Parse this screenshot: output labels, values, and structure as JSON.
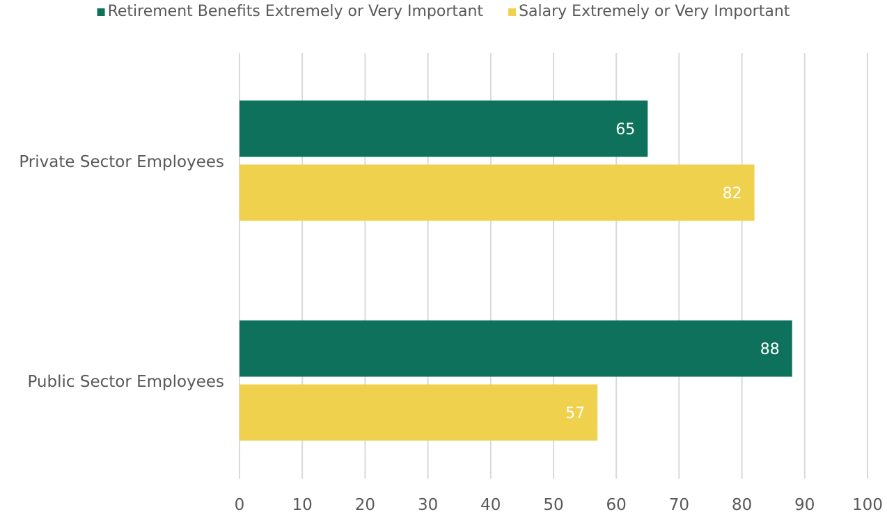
{
  "chart_data": {
    "type": "bar",
    "orientation": "horizontal",
    "categories": [
      "Private Sector Employees",
      "Public Sector Employees"
    ],
    "series": [
      {
        "name": "Retirement Benefits Extremely or Very Important",
        "values": [
          65,
          88
        ],
        "color": "#0e715c"
      },
      {
        "name": "Salary Extremely or Very Important",
        "values": [
          82,
          57
        ],
        "color": "#efd14e"
      }
    ],
    "xlim": [
      0,
      100
    ],
    "x_ticks": [
      0,
      10,
      20,
      30,
      40,
      50,
      60,
      70,
      80,
      90,
      100
    ],
    "grid": true,
    "legend_position": "top",
    "data_labels": true,
    "colors": {
      "grid": "#d9d9d9",
      "text": "#595959",
      "data_label": "#ffffff"
    }
  }
}
